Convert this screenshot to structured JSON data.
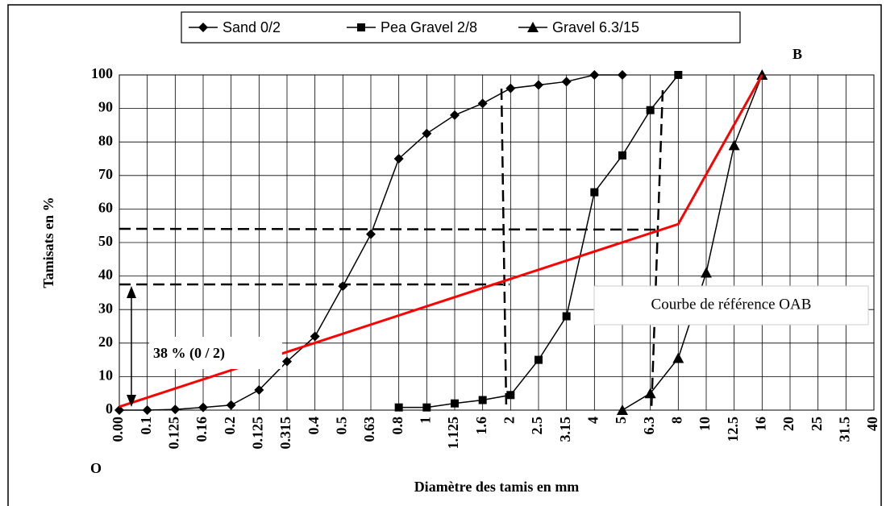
{
  "chart_data": {
    "type": "line",
    "ylabel": "Tamisats en %",
    "xlabel": "Diamètre des tamis en mm",
    "categories": [
      "0.00",
      "0.1",
      "0.125",
      "0.16",
      "0.2",
      "0.125",
      "0.315",
      "0.4",
      "0.5",
      "0.63",
      "0.8",
      "1",
      "1.125",
      "1.6",
      "2",
      "2.5",
      "3.15",
      "4",
      "5",
      "6.3",
      "8",
      "10",
      "12.5",
      "16",
      "20",
      "25",
      "31.5",
      "40"
    ],
    "ylim": [
      0,
      100
    ],
    "yticks": [
      0,
      10,
      20,
      30,
      40,
      50,
      60,
      70,
      80,
      90,
      100
    ],
    "grid": true,
    "legend": "top",
    "series": [
      {
        "name": "Sand 0/2",
        "color": "#000000",
        "marker": "diamond",
        "values": [
          0,
          0,
          0.2,
          0.8,
          1.5,
          6,
          14.5,
          22,
          37,
          52.5,
          75,
          82.5,
          88,
          91.5,
          96,
          97,
          98,
          100,
          100,
          null,
          null,
          null,
          null,
          null,
          null,
          null,
          null,
          null
        ]
      },
      {
        "name": "Pea Gravel 2/8",
        "color": "#000000",
        "marker": "square",
        "values": [
          null,
          null,
          null,
          null,
          null,
          null,
          null,
          null,
          null,
          null,
          0.8,
          0.8,
          2,
          3,
          4.5,
          15,
          28,
          65,
          76,
          89.5,
          100,
          null,
          null,
          null,
          null,
          null,
          null,
          null
        ]
      },
      {
        "name": "Gravel 6.3/15",
        "color": "#000000",
        "marker": "triangle",
        "values": [
          null,
          null,
          null,
          null,
          null,
          null,
          null,
          null,
          null,
          null,
          null,
          null,
          null,
          null,
          null,
          null,
          null,
          null,
          0,
          5,
          15.5,
          41,
          79,
          100,
          null,
          null,
          null,
          null
        ]
      }
    ],
    "reference": {
      "label": "Courbe de référence OAB",
      "color": "#ff0000",
      "x": [
        "0.00",
        "8",
        "16"
      ],
      "values": [
        1,
        55.5,
        100
      ]
    },
    "annotations": [
      "38 %  (0 / 2)",
      "O",
      "B"
    ]
  }
}
